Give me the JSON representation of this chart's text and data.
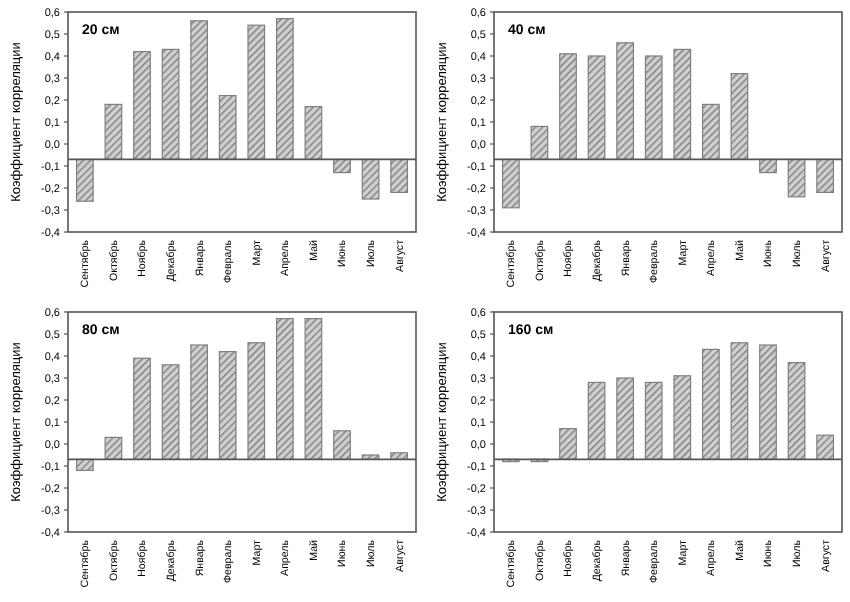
{
  "chart_data": [
    {
      "type": "bar",
      "title": "20 см",
      "ylabel": "Коэффициент корреляции",
      "categories": [
        "Сентябрь",
        "Октябрь",
        "Ноябрь",
        "Декабрь",
        "Январь",
        "Февраль",
        "Март",
        "Апрель",
        "Май",
        "Июнь",
        "Июль",
        "Август"
      ],
      "values": [
        -0.19,
        0.25,
        0.49,
        0.5,
        0.63,
        0.29,
        0.61,
        0.64,
        0.24,
        -0.06,
        -0.18,
        -0.15
      ],
      "base": [
        -0.07,
        -0.07,
        -0.07,
        -0.07,
        -0.07,
        -0.07,
        -0.07,
        -0.07,
        -0.07,
        -0.07,
        -0.07,
        -0.07
      ],
      "color": "#7f7f7f",
      "ylim": [
        -0.4,
        0.6
      ],
      "yticks": [
        {
          "value": 0.6,
          "label": "0,6"
        },
        {
          "value": 0.5,
          "label": "0,5"
        },
        {
          "value": 0.4,
          "label": "0,4"
        },
        {
          "value": 0.3,
          "label": "0,3"
        },
        {
          "value": 0.2,
          "label": "0,2"
        },
        {
          "value": 0.1,
          "label": "0,1"
        },
        {
          "value": 0,
          "label": "0,0"
        },
        {
          "value": -0.1,
          "label": "-0,1"
        },
        {
          "value": -0.2,
          "label": "-0,2"
        },
        {
          "value": -0.3,
          "label": "-0,3"
        },
        {
          "value": -0.4,
          "label": "-0,4"
        }
      ],
      "ref_lines": [
        {
          "axis": "y",
          "value": -0.07
        }
      ]
    },
    {
      "type": "bar",
      "title": "40 см",
      "ylabel": "Коэффициент корреляции",
      "categories": [
        "Сентябрь",
        "Октябрь",
        "Ноябрь",
        "Декабрь",
        "Январь",
        "Февраль",
        "Март",
        "Апрель",
        "Май",
        "Июнь",
        "Июль",
        "Август"
      ],
      "values": [
        -0.22,
        0.15,
        0.48,
        0.47,
        0.53,
        0.47,
        0.5,
        0.25,
        0.39,
        -0.06,
        -0.17,
        -0.15
      ],
      "base": [
        -0.07,
        -0.07,
        -0.07,
        -0.07,
        -0.07,
        -0.07,
        -0.07,
        -0.07,
        -0.07,
        -0.07,
        -0.07,
        -0.07
      ],
      "color": "#7f7f7f",
      "ylim": [
        -0.4,
        0.6
      ],
      "yticks": [
        {
          "value": 0.6,
          "label": "0,6"
        },
        {
          "value": 0.5,
          "label": "0,5"
        },
        {
          "value": 0.4,
          "label": "0,4"
        },
        {
          "value": 0.3,
          "label": "0,3"
        },
        {
          "value": 0.2,
          "label": "0,2"
        },
        {
          "value": 0.1,
          "label": "0,1"
        },
        {
          "value": 0,
          "label": "0,0"
        },
        {
          "value": -0.1,
          "label": "-0,1"
        },
        {
          "value": -0.2,
          "label": "-0,2"
        },
        {
          "value": -0.3,
          "label": "-0,3"
        },
        {
          "value": -0.4,
          "label": "-0,4"
        }
      ],
      "ref_lines": [
        {
          "axis": "y",
          "value": -0.07
        }
      ]
    },
    {
      "type": "bar",
      "title": "80 см",
      "ylabel": "Коэффициент корреляции",
      "categories": [
        "Сентябрь",
        "Октябрь",
        "Ноябрь",
        "Декабрь",
        "Январь",
        "Февраль",
        "Март",
        "Апрель",
        "Май",
        "Июнь",
        "Июль",
        "Август"
      ],
      "values": [
        -0.05,
        0.1,
        0.46,
        0.43,
        0.52,
        0.49,
        0.53,
        0.64,
        0.64,
        0.13,
        0.02,
        0.03
      ],
      "base": [
        -0.07,
        -0.07,
        -0.07,
        -0.07,
        -0.07,
        -0.07,
        -0.07,
        -0.07,
        -0.07,
        -0.07,
        -0.07,
        -0.07
      ],
      "color": "#7f7f7f",
      "ylim": [
        -0.4,
        0.6
      ],
      "yticks": [
        {
          "value": 0.6,
          "label": "0,6"
        },
        {
          "value": 0.5,
          "label": "0,5"
        },
        {
          "value": 0.4,
          "label": "0,4"
        },
        {
          "value": 0.3,
          "label": "0,3"
        },
        {
          "value": 0.2,
          "label": "0,2"
        },
        {
          "value": 0.1,
          "label": "0,1"
        },
        {
          "value": 0,
          "label": "0,0"
        },
        {
          "value": -0.1,
          "label": "-0,1"
        },
        {
          "value": -0.2,
          "label": "-0,2"
        },
        {
          "value": -0.3,
          "label": "-0,3"
        },
        {
          "value": -0.4,
          "label": "-0,4"
        }
      ],
      "ref_lines": [
        {
          "axis": "y",
          "value": -0.07
        }
      ]
    },
    {
      "type": "bar",
      "title": "160 см",
      "ylabel": "Коэффициент корреляции",
      "categories": [
        "Сентябрь",
        "Октябрь",
        "Ноябрь",
        "Декабрь",
        "Январь",
        "Февраль",
        "Март",
        "Апрель",
        "Май",
        "Июнь",
        "Июль",
        "Август"
      ],
      "values": [
        -0.01,
        -0.01,
        0.14,
        0.35,
        0.37,
        0.35,
        0.38,
        0.5,
        0.53,
        0.52,
        0.44,
        0.11
      ],
      "base": [
        -0.07,
        -0.07,
        -0.07,
        -0.07,
        -0.07,
        -0.07,
        -0.07,
        -0.07,
        -0.07,
        -0.07,
        -0.07,
        -0.07
      ],
      "color": "#7f7f7f",
      "ylim": [
        -0.4,
        0.6
      ],
      "yticks": [
        {
          "value": 0.6,
          "label": "0,6"
        },
        {
          "value": 0.5,
          "label": "0,5"
        },
        {
          "value": 0.4,
          "label": "0,4"
        },
        {
          "value": 0.3,
          "label": "0,3"
        },
        {
          "value": 0.2,
          "label": "0,2"
        },
        {
          "value": 0.1,
          "label": "0,1"
        },
        {
          "value": 0,
          "label": "0,0"
        },
        {
          "value": -0.1,
          "label": "-0,1"
        },
        {
          "value": -0.2,
          "label": "-0,2"
        },
        {
          "value": -0.3,
          "label": "-0,3"
        },
        {
          "value": -0.4,
          "label": "-0,4"
        }
      ],
      "ref_lines": [
        {
          "axis": "y",
          "value": -0.07
        }
      ]
    }
  ]
}
